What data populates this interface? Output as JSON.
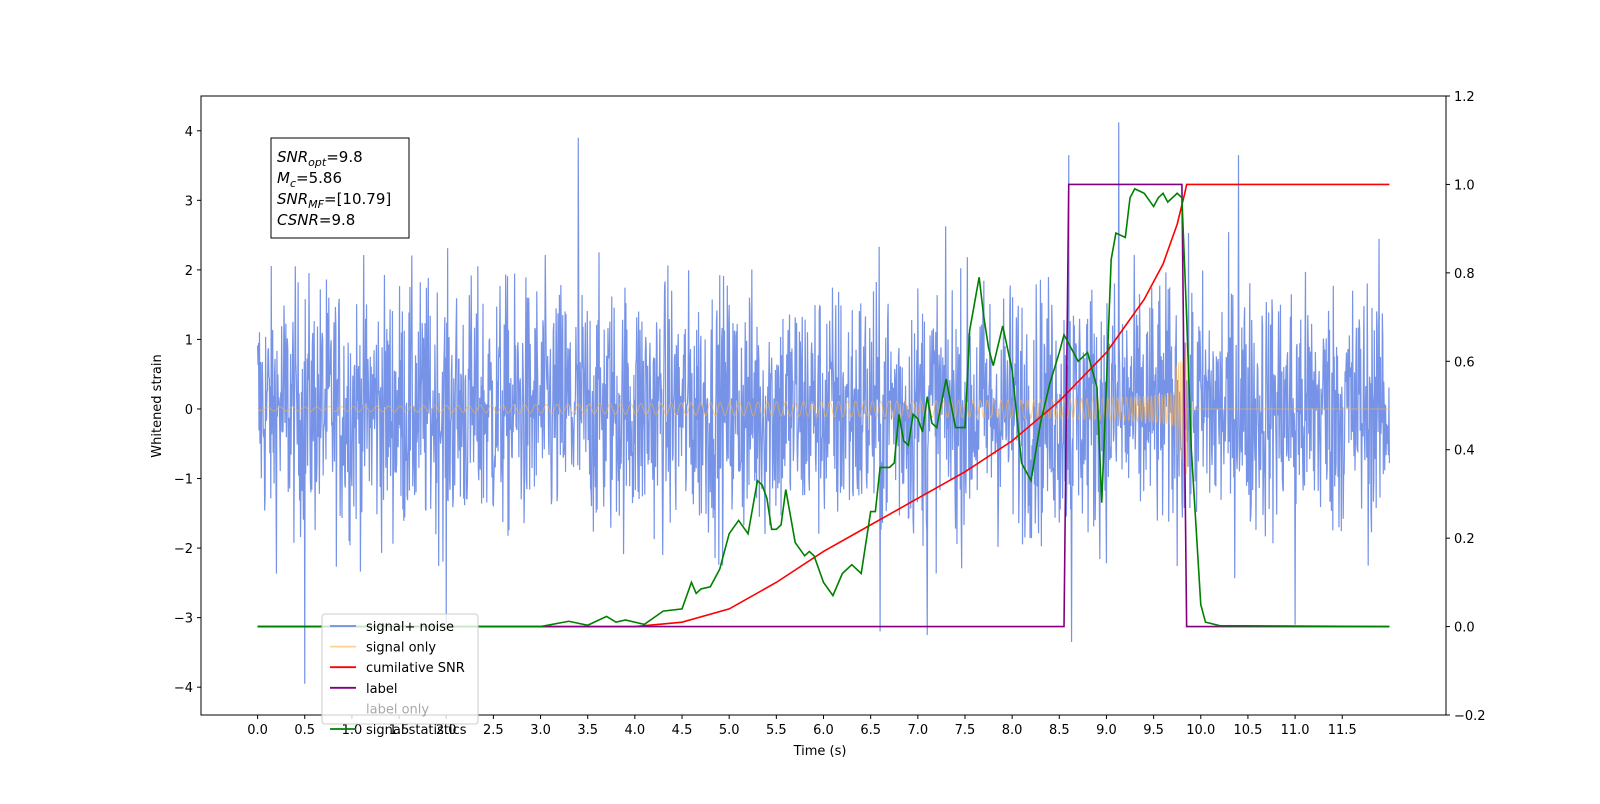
{
  "chart_data": {
    "type": "line",
    "xlabel": "Time (s)",
    "ylabel": "Whitened strain",
    "xlim": [
      -0.6,
      12.6
    ],
    "ylim": [
      -4.4,
      4.5
    ],
    "y2lim": [
      -0.2,
      1.2
    ],
    "x_ticks": [
      0.0,
      0.5,
      1.0,
      1.5,
      2.0,
      2.5,
      3.0,
      3.5,
      4.0,
      4.5,
      5.0,
      5.5,
      6.0,
      6.5,
      7.0,
      7.5,
      8.0,
      8.5,
      9.0,
      9.5,
      10.0,
      10.5,
      11.0,
      11.5
    ],
    "x_tick_labels": [
      "0.0",
      "0.5",
      "1.0",
      "1.5",
      "2.0",
      "2.5",
      "3.0",
      "3.5",
      "4.0",
      "4.5",
      "5.0",
      "5.5",
      "6.0",
      "6.5",
      "7.0",
      "7.5",
      "8.0",
      "8.5",
      "9.0",
      "9.5",
      "10.0",
      "10.5",
      "11.0",
      "11.5"
    ],
    "y_ticks": [
      -4,
      -3,
      -2,
      -1,
      0,
      1,
      2,
      3,
      4
    ],
    "y_tick_labels": [
      "−4",
      "−3",
      "−2",
      "−1",
      "0",
      "1",
      "2",
      "3",
      "4"
    ],
    "y2_ticks": [
      -0.2,
      0.0,
      0.2,
      0.4,
      0.6,
      0.8,
      1.0,
      1.2
    ],
    "y2_tick_labels": [
      "−0.2",
      "0.0",
      "0.2",
      "0.4",
      "0.6",
      "0.8",
      "1.0",
      "1.2"
    ],
    "legend_position": "lower-left",
    "grid": false,
    "annotation": {
      "lines": [
        {
          "main": "SNR",
          "sub": "opt",
          "rest": "=9.8"
        },
        {
          "main": "M",
          "sub": "c",
          "rest": "=5.86"
        },
        {
          "main": "SNR",
          "sub": "MF",
          "rest": "=[10.79]"
        },
        {
          "main": "CSNR",
          "sub": "",
          "rest": "=9.8"
        }
      ]
    },
    "series": [
      {
        "name": "signal+ noise",
        "color": "#6f8de6",
        "axis": "left",
        "kind": "noise",
        "x_range": [
          0.0,
          12.0
        ],
        "amplitude_std": 1.0,
        "peaks": [
          [
            0.5,
            -3.95
          ],
          [
            3.4,
            3.9
          ],
          [
            9.13,
            4.12
          ],
          [
            10.4,
            3.65
          ],
          [
            8.6,
            3.65
          ],
          [
            8.63,
            -3.35
          ],
          [
            7.1,
            -3.25
          ],
          [
            6.6,
            -3.2
          ],
          [
            2.0,
            -3.1
          ],
          [
            11.0,
            -3.1
          ]
        ]
      },
      {
        "name": "signal only",
        "color": "#ffb347",
        "axis": "left",
        "kind": "chirp",
        "x_range": [
          0.0,
          12.0
        ],
        "merger_time": 9.85,
        "peak_amplitude": 1.7
      },
      {
        "name": "cumilative SNR",
        "color": "#ff0000",
        "axis": "right",
        "x": [
          0.0,
          4.0,
          4.5,
          5.0,
          5.5,
          6.0,
          6.5,
          7.0,
          7.5,
          8.0,
          8.5,
          9.0,
          9.4,
          9.6,
          9.75,
          9.83,
          9.85,
          12.0
        ],
        "y": [
          0.0,
          0.0,
          0.01,
          0.04,
          0.1,
          0.17,
          0.23,
          0.29,
          0.35,
          0.42,
          0.51,
          0.62,
          0.74,
          0.82,
          0.91,
          0.98,
          1.0,
          1.0
        ]
      },
      {
        "name": "label",
        "color": "#800080",
        "axis": "right",
        "x": [
          0.0,
          8.55,
          8.6,
          9.8,
          9.85,
          12.0
        ],
        "y": [
          0.0,
          0.0,
          1.0,
          1.0,
          0.0,
          0.0
        ]
      },
      {
        "name": "label only",
        "color": "#800080",
        "axis": "right",
        "hidden": true,
        "x": [],
        "y": []
      },
      {
        "name": "signal statistics",
        "color": "#008000",
        "axis": "right",
        "x": [
          0.0,
          3.0,
          3.3,
          3.5,
          3.7,
          3.8,
          3.9,
          4.1,
          4.3,
          4.5,
          4.6,
          4.65,
          4.7,
          4.8,
          4.9,
          5.0,
          5.1,
          5.2,
          5.3,
          5.35,
          5.4,
          5.45,
          5.5,
          5.55,
          5.6,
          5.7,
          5.8,
          5.85,
          5.9,
          6.0,
          6.1,
          6.2,
          6.3,
          6.4,
          6.5,
          6.55,
          6.6,
          6.7,
          6.75,
          6.8,
          6.85,
          6.9,
          6.95,
          7.0,
          7.05,
          7.1,
          7.15,
          7.2,
          7.3,
          7.4,
          7.5,
          7.55,
          7.6,
          7.65,
          7.7,
          7.75,
          7.8,
          7.9,
          8.0,
          8.1,
          8.2,
          8.3,
          8.4,
          8.5,
          8.55,
          8.6,
          8.7,
          8.8,
          8.9,
          8.95,
          9.0,
          9.05,
          9.1,
          9.2,
          9.25,
          9.3,
          9.4,
          9.5,
          9.55,
          9.6,
          9.65,
          9.75,
          9.8,
          9.85,
          9.9,
          10.0,
          10.05,
          10.2,
          12.0
        ],
        "y": [
          0.0,
          0.0,
          0.012,
          0.003,
          0.023,
          0.01,
          0.015,
          0.005,
          0.035,
          0.04,
          0.1,
          0.075,
          0.085,
          0.09,
          0.13,
          0.21,
          0.24,
          0.21,
          0.33,
          0.32,
          0.29,
          0.22,
          0.22,
          0.23,
          0.31,
          0.19,
          0.16,
          0.17,
          0.16,
          0.1,
          0.07,
          0.12,
          0.14,
          0.12,
          0.26,
          0.26,
          0.36,
          0.36,
          0.37,
          0.48,
          0.42,
          0.41,
          0.48,
          0.47,
          0.44,
          0.52,
          0.46,
          0.45,
          0.56,
          0.45,
          0.45,
          0.67,
          0.73,
          0.79,
          0.7,
          0.63,
          0.59,
          0.68,
          0.58,
          0.37,
          0.33,
          0.46,
          0.55,
          0.62,
          0.66,
          0.64,
          0.6,
          0.62,
          0.54,
          0.28,
          0.55,
          0.83,
          0.89,
          0.88,
          0.97,
          0.99,
          0.98,
          0.95,
          0.97,
          0.98,
          0.96,
          0.98,
          0.97,
          0.7,
          0.4,
          0.05,
          0.01,
          0.002,
          0.0
        ]
      }
    ]
  }
}
